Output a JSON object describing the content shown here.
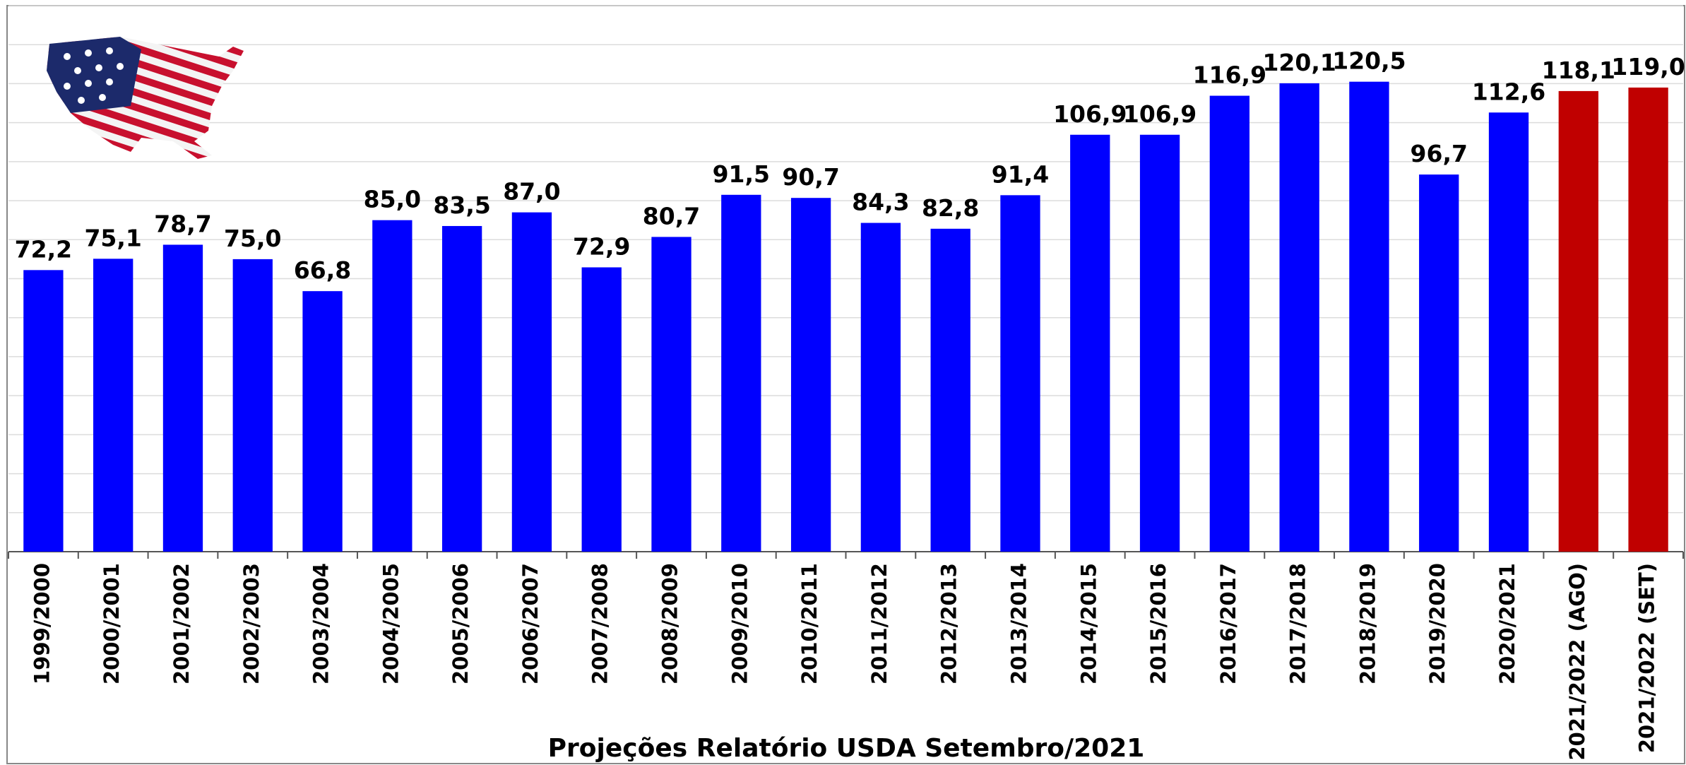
{
  "chart_data": {
    "type": "bar",
    "title": "Projeções Relatório USDA Setembro/2021",
    "categories": [
      "1999/2000",
      "2000/2001",
      "2001/2002",
      "2002/2003",
      "2003/2004",
      "2004/2005",
      "2005/2006",
      "2006/2007",
      "2007/2008",
      "2008/2009",
      "2009/2010",
      "2010/2011",
      "2011/2012",
      "2012/2013",
      "2013/2014",
      "2014/2015",
      "2015/2016",
      "2016/2017",
      "2017/2018",
      "2018/2019",
      "2019/2020",
      "2020/2021",
      "2021/2022 (AGO)",
      "2021/2022 (SET)"
    ],
    "values": [
      72.2,
      75.1,
      78.7,
      75.0,
      66.8,
      85.0,
      83.5,
      87.0,
      72.9,
      80.7,
      91.5,
      90.7,
      84.3,
      82.8,
      91.4,
      106.9,
      106.9,
      116.9,
      120.1,
      120.5,
      96.7,
      112.6,
      118.1,
      119.0
    ],
    "value_labels": [
      "72,2",
      "75,1",
      "78,7",
      "75,0",
      "66,8",
      "85,0",
      "83,5",
      "87,0",
      "72,9",
      "80,7",
      "91,5",
      "90,7",
      "84,3",
      "82,8",
      "91,4",
      "106,9",
      "106,9",
      "116,9",
      "120,1",
      "120,5",
      "96,7",
      "112,6",
      "118,1",
      "119,0"
    ],
    "colors": [
      "#0000ff",
      "#0000ff",
      "#0000ff",
      "#0000ff",
      "#0000ff",
      "#0000ff",
      "#0000ff",
      "#0000ff",
      "#0000ff",
      "#0000ff",
      "#0000ff",
      "#0000ff",
      "#0000ff",
      "#0000ff",
      "#0000ff",
      "#0000ff",
      "#0000ff",
      "#0000ff",
      "#0000ff",
      "#0000ff",
      "#0000ff",
      "#0000ff",
      "#c00000",
      "#c00000"
    ],
    "ylim": [
      0,
      140
    ],
    "yticks": [
      0,
      10,
      20,
      30,
      40,
      50,
      60,
      70,
      80,
      90,
      100,
      110,
      120,
      130,
      140
    ],
    "grid": true
  }
}
